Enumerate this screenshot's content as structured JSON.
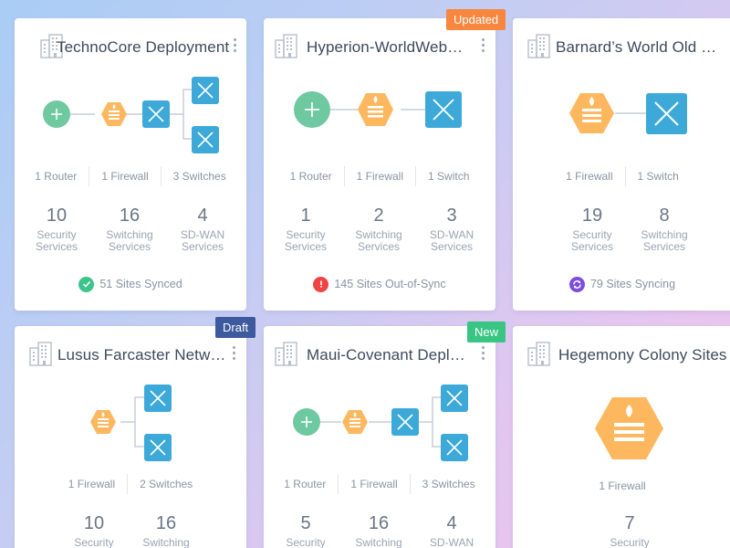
{
  "colors": {
    "router": "#6fc9a0",
    "firewall": "#fdb85f",
    "switch": "#3da9d8",
    "connector": "#c7ced8",
    "synced": "#3cc48a",
    "out_of_sync": "#ef4444",
    "syncing": "#7c4dde",
    "badge_updated": "#f7873f",
    "badge_draft": "#3d5a9e",
    "badge_new": "#39c583"
  },
  "cards": [
    {
      "title": "TechnoCore Deployment",
      "badge": "",
      "counts": [
        "1 Router",
        "1 Firewall",
        "3 Switches"
      ],
      "services": [
        {
          "num": "10",
          "label1": "Security",
          "label2": "Services"
        },
        {
          "num": "16",
          "label1": "Switching",
          "label2": "Services"
        },
        {
          "num": "4",
          "label1": "SD-WAN",
          "label2": "Services"
        }
      ],
      "status": {
        "type": "check-icon",
        "text": "51 Sites Synced"
      }
    },
    {
      "title": "Hyperion-WorldWeb…",
      "badge": "Updated",
      "counts": [
        "1 Router",
        "1 Firewall",
        "1 Switch"
      ],
      "services": [
        {
          "num": "1",
          "label1": "Security",
          "label2": "Services"
        },
        {
          "num": "2",
          "label1": "Switching",
          "label2": "Services"
        },
        {
          "num": "3",
          "label1": "SD-WAN",
          "label2": "Services"
        }
      ],
      "status": {
        "type": "alert-icon",
        "text": "145 Sites Out-of-Sync"
      }
    },
    {
      "title": "Barnard’s World Old E…",
      "badge": "",
      "counts": [
        "1 Firewall",
        "1 Switch"
      ],
      "services": [
        {
          "num": "19",
          "label1": "Security",
          "label2": "Services"
        },
        {
          "num": "8",
          "label1": "Switching",
          "label2": "Services"
        }
      ],
      "status": {
        "type": "sync-icon",
        "text": "79 Sites Syncing"
      }
    },
    {
      "title": "Lusus Farcaster Network",
      "badge": "Draft",
      "counts": [
        "1 Firewall",
        "2 Switches"
      ],
      "services": [
        {
          "num": "10",
          "label1": "Security",
          "label2": ""
        },
        {
          "num": "16",
          "label1": "Switching",
          "label2": ""
        }
      ]
    },
    {
      "title": "Maui-Covenant Deploy…",
      "badge": "New",
      "counts": [
        "1 Router",
        "1 Firewall",
        "3 Switches"
      ],
      "services": [
        {
          "num": "5",
          "label1": "Security",
          "label2": ""
        },
        {
          "num": "16",
          "label1": "Switching",
          "label2": ""
        },
        {
          "num": "4",
          "label1": "SD-WAN",
          "label2": ""
        }
      ]
    },
    {
      "title": "Hegemony Colony Sites",
      "badge": "",
      "counts": [
        "1 Firewall"
      ],
      "services": [
        {
          "num": "7",
          "label1": "Security",
          "label2": ""
        }
      ]
    }
  ]
}
